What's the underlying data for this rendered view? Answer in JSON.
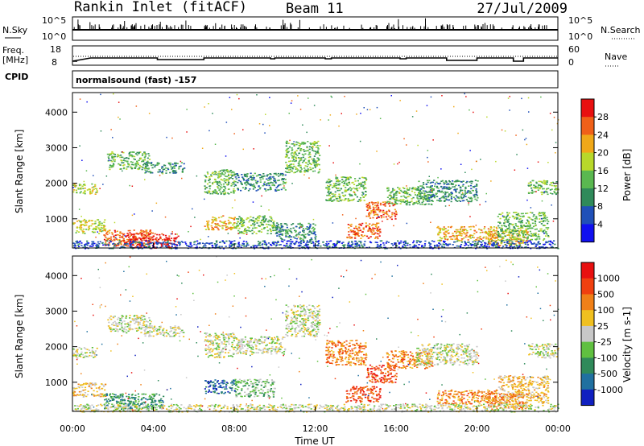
{
  "header": {
    "station": "Rankin Inlet (fitACF)",
    "beam": "Beam 11",
    "date": "27/Jul/2009"
  },
  "top_panels": {
    "nsky_label": "N.Sky",
    "nsky_ticks": [
      "10^5",
      "10^0"
    ],
    "nsearch_label": "N.Search",
    "nsearch_ticks": [
      "10^5",
      "10^0"
    ],
    "freq_label_1": "Freq.",
    "freq_label_2": "[MHz]",
    "freq_ticks": [
      "18",
      "8"
    ],
    "nave_label": "Nave",
    "nave_ticks": [
      "60",
      "0"
    ],
    "cpid_label": "CPID",
    "cpid_value": "normalsound (fast) -157"
  },
  "chart_data": [
    {
      "type": "heatmap",
      "name": "power-panel",
      "ylabel": "Slant Range [km]",
      "yticks": [
        1000,
        2000,
        3000,
        4000
      ],
      "ylim": [
        180,
        4550
      ],
      "xlabel": "Time UT",
      "xticks": [
        "00:00",
        "04:00",
        "08:00",
        "12:00",
        "16:00",
        "20:00",
        "00:00"
      ],
      "xlim_hours": [
        0,
        24
      ],
      "colorbar": {
        "label": "Power [dB]",
        "ticks": [
          "4",
          "8",
          "12",
          "16",
          "20",
          "24",
          "28"
        ],
        "colors": [
          "#1010f0",
          "#2050b8",
          "#2f8a5a",
          "#5ab850",
          "#b8d82a",
          "#f0a818",
          "#f06018",
          "#e81010"
        ]
      },
      "regions": [
        {
          "t": [
            0.0,
            1.6
          ],
          "r": [
            600,
            1000
          ],
          "level": 4
        },
        {
          "t": [
            0.0,
            1.2
          ],
          "r": [
            1700,
            2000
          ],
          "level": 4
        },
        {
          "t": [
            1.5,
            4.0
          ],
          "r": [
            250,
            700
          ],
          "level": 6
        },
        {
          "t": [
            2.5,
            5.2
          ],
          "r": [
            180,
            600
          ],
          "level": 7
        },
        {
          "t": [
            1.7,
            3.8
          ],
          "r": [
            2400,
            2900
          ],
          "level": 3
        },
        {
          "t": [
            3.5,
            5.5
          ],
          "r": [
            2300,
            2600
          ],
          "level": 2
        },
        {
          "t": [
            6.5,
            8.0
          ],
          "r": [
            700,
            1100
          ],
          "level": 5
        },
        {
          "t": [
            6.5,
            8.0
          ],
          "r": [
            1700,
            2400
          ],
          "level": 3
        },
        {
          "t": [
            8.0,
            10.0
          ],
          "r": [
            600,
            1100
          ],
          "level": 3
        },
        {
          "t": [
            8.0,
            10.5
          ],
          "r": [
            1800,
            2300
          ],
          "level": 2
        },
        {
          "t": [
            10.5,
            12.2
          ],
          "r": [
            2300,
            3200
          ],
          "level": 3
        },
        {
          "t": [
            10.0,
            12.0
          ],
          "r": [
            400,
            900
          ],
          "level": 2
        },
        {
          "t": [
            12.5,
            14.5
          ],
          "r": [
            1500,
            2200
          ],
          "level": 3
        },
        {
          "t": [
            13.5,
            15.2
          ],
          "r": [
            450,
            900
          ],
          "level": 6
        },
        {
          "t": [
            14.5,
            16.0
          ],
          "r": [
            1000,
            1500
          ],
          "level": 6
        },
        {
          "t": [
            15.5,
            17.8
          ],
          "r": [
            1400,
            1900
          ],
          "level": 3
        },
        {
          "t": [
            17.0,
            20.0
          ],
          "r": [
            1500,
            2100
          ],
          "level": 2
        },
        {
          "t": [
            18.0,
            21.0
          ],
          "r": [
            400,
            800
          ],
          "level": 5
        },
        {
          "t": [
            20.5,
            22.5
          ],
          "r": [
            250,
            700
          ],
          "level": 5
        },
        {
          "t": [
            22.5,
            24.0
          ],
          "r": [
            1700,
            2100
          ],
          "level": 3
        },
        {
          "t": [
            21.0,
            23.5
          ],
          "r": [
            400,
            1200
          ],
          "level": 3
        },
        {
          "t": [
            0.0,
            24.0
          ],
          "r": [
            180,
            400
          ],
          "level": 1
        }
      ]
    },
    {
      "type": "heatmap",
      "name": "velocity-panel",
      "ylabel": "Slant Range [km]",
      "yticks": [
        1000,
        2000,
        3000,
        4000
      ],
      "ylim": [
        180,
        4550
      ],
      "xlabel": "Time UT",
      "xticks": [
        "00:00",
        "04:00",
        "08:00",
        "12:00",
        "16:00",
        "20:00",
        "00:00"
      ],
      "xlim_hours": [
        0,
        24
      ],
      "colorbar": {
        "label": "Velocity [m s-1]",
        "ticks": [
          "1000",
          "500",
          "100",
          "25",
          "-25",
          "-100",
          "-500",
          "-1000"
        ],
        "colors": [
          "#1020c0",
          "#2070a0",
          "#2f8a5a",
          "#60c040",
          "#c8c8c8",
          "#f0c020",
          "#f08018",
          "#f04010",
          "#e81010"
        ]
      },
      "regions": [
        {
          "t": [
            0.0,
            1.6
          ],
          "r": [
            600,
            1000
          ],
          "level": 5
        },
        {
          "t": [
            0.0,
            1.2
          ],
          "r": [
            1700,
            2000
          ],
          "level": 4
        },
        {
          "t": [
            1.5,
            4.5
          ],
          "r": [
            250,
            700
          ],
          "level": 2
        },
        {
          "t": [
            1.7,
            3.8
          ],
          "r": [
            2400,
            2900
          ],
          "level": 4
        },
        {
          "t": [
            3.5,
            5.5
          ],
          "r": [
            2300,
            2600
          ],
          "level": 4
        },
        {
          "t": [
            6.5,
            8.0
          ],
          "r": [
            700,
            1100
          ],
          "level": 1
        },
        {
          "t": [
            6.5,
            8.0
          ],
          "r": [
            1700,
            2400
          ],
          "level": 4
        },
        {
          "t": [
            8.0,
            10.0
          ],
          "r": [
            600,
            1100
          ],
          "level": 3
        },
        {
          "t": [
            8.0,
            10.5
          ],
          "r": [
            1800,
            2300
          ],
          "level": 4
        },
        {
          "t": [
            10.5,
            12.2
          ],
          "r": [
            2300,
            3200
          ],
          "level": 4
        },
        {
          "t": [
            12.5,
            14.5
          ],
          "r": [
            1500,
            2200
          ],
          "level": 6
        },
        {
          "t": [
            13.5,
            15.2
          ],
          "r": [
            450,
            900
          ],
          "level": 7
        },
        {
          "t": [
            14.5,
            16.0
          ],
          "r": [
            1000,
            1500
          ],
          "level": 7
        },
        {
          "t": [
            15.5,
            17.8
          ],
          "r": [
            1400,
            1900
          ],
          "level": 6
        },
        {
          "t": [
            17.0,
            20.0
          ],
          "r": [
            1500,
            2100
          ],
          "level": 4
        },
        {
          "t": [
            18.0,
            21.0
          ],
          "r": [
            400,
            800
          ],
          "level": 6
        },
        {
          "t": [
            20.5,
            22.5
          ],
          "r": [
            250,
            700
          ],
          "level": 6
        },
        {
          "t": [
            22.5,
            24.0
          ],
          "r": [
            1700,
            2100
          ],
          "level": 4
        },
        {
          "t": [
            21.0,
            23.5
          ],
          "r": [
            400,
            1200
          ],
          "level": 5
        },
        {
          "t": [
            0.0,
            24.0
          ],
          "r": [
            180,
            400
          ],
          "level": 4
        }
      ]
    }
  ]
}
